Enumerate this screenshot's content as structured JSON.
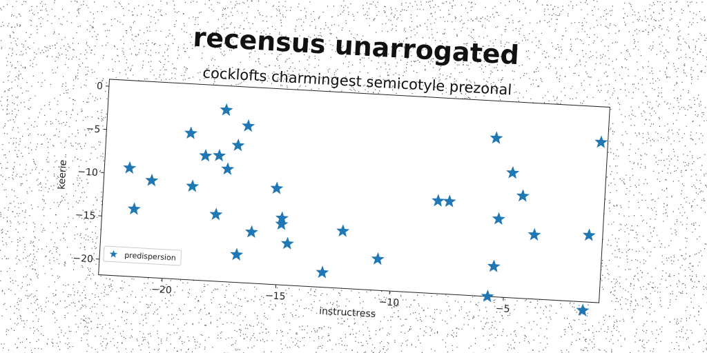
{
  "chart_data": {
    "type": "scatter",
    "title": "recensus unarrogated",
    "subtitle": "cocklofts charmingest semicotyle prezonal",
    "xlabel": "instructress",
    "ylabel": "keerie",
    "xlim": [
      -22.8,
      -0.8
    ],
    "ylim": [
      -21.8,
      0.8
    ],
    "xticks": [
      -20,
      -15,
      -10,
      -5
    ],
    "yticks": [
      0,
      -5,
      -10,
      -15,
      -20
    ],
    "xtick_labels": [
      "−20",
      "−15",
      "−10",
      "−5"
    ],
    "ytick_labels": [
      "0",
      "−5",
      "−10",
      "−15",
      "−20"
    ],
    "legend_position": "lower-left",
    "grid": false,
    "marker": "star",
    "series": [
      {
        "name": "predispersion",
        "color": "#1f77b4",
        "x": [
          -17.6,
          -16.6,
          -19.1,
          -17.0,
          -18.4,
          -17.8,
          -17.4,
          -21.7,
          -20.7,
          -18.9,
          -21.4,
          -17.8,
          -16.2,
          -16.8,
          -15.2,
          -14.9,
          -14.9,
          -14.6,
          -13.0,
          -12.2,
          -10.6,
          -8.1,
          -7.6,
          -5.7,
          -4.9,
          -4.4,
          -5.4,
          -3.8,
          -5.5,
          -5.7,
          -1.1,
          -1.4,
          -1.5
        ],
        "y": [
          -2.0,
          -3.7,
          -4.9,
          -6.0,
          -7.4,
          -7.3,
          -8.8,
          -9.3,
          -10.6,
          -11.0,
          -14.0,
          -14.1,
          -15.9,
          -18.6,
          -10.7,
          -14.1,
          -14.8,
          -17.0,
          -20.1,
          -15.2,
          -18.2,
          -11.1,
          -11.1,
          -3.5,
          -7.4,
          -10.0,
          -12.8,
          -14.4,
          -18.3,
          -21.8,
          -3.3,
          -14.1,
          -22.8
        ]
      }
    ]
  }
}
